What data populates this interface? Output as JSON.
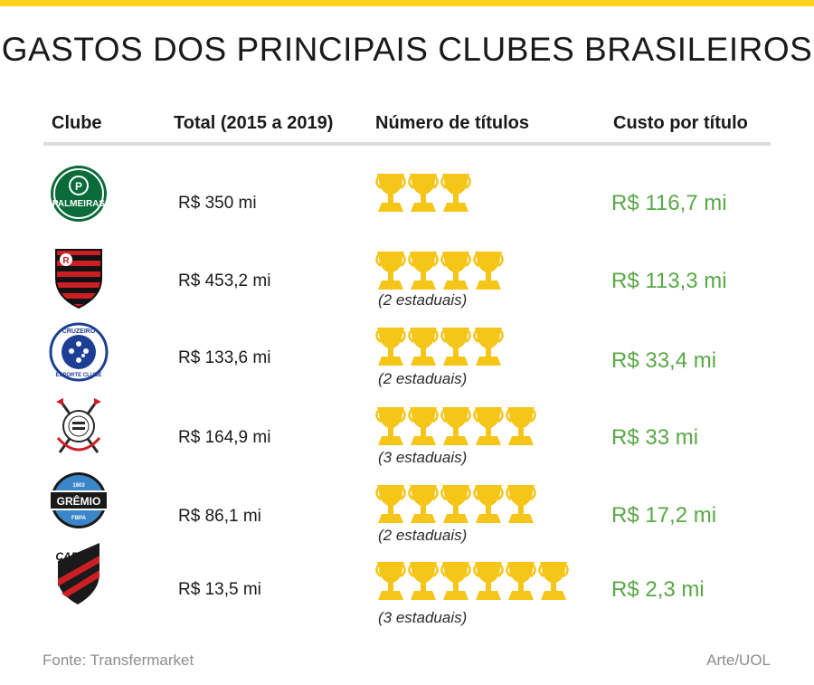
{
  "title": "GASTOS DOS PRINCIPAIS CLUBES BRASILEIROS",
  "headers": {
    "club": "Clube",
    "total": "Total (2015 a 2019)",
    "titles": "Número de títulos",
    "cost": "Custo por título"
  },
  "rows": [
    {
      "logo": "palmeiras-logo",
      "total": "R$ 350 mi",
      "trophies": 3,
      "note": "",
      "cost": "R$ 116,7 mi"
    },
    {
      "logo": "flamengo-logo",
      "total": "R$ 453,2 mi",
      "trophies": 4,
      "note": "(2 estaduais)",
      "cost": "R$ 113,3 mi"
    },
    {
      "logo": "cruzeiro-logo",
      "total": "R$ 133,6 mi",
      "trophies": 4,
      "note": "(2 estaduais)",
      "cost": "R$ 33,4 mi"
    },
    {
      "logo": "corinthians-logo",
      "total": "R$ 164,9 mi",
      "trophies": 5,
      "note": "(3 estaduais)",
      "cost": "R$ 33 mi"
    },
    {
      "logo": "gremio-logo",
      "total": "R$ 86,1 mi",
      "trophies": 5,
      "note": "(2 estaduais)",
      "cost": "R$ 17,2 mi"
    },
    {
      "logo": "athletico-pr-logo",
      "total": "R$ 13,5 mi",
      "trophies": 6,
      "note": "(3 estaduais)",
      "cost": "R$ 2,3 mi"
    }
  ],
  "logo_text": {
    "palmeiras": "PALMEIRAS",
    "cruzeiro": "CRUZEIRO",
    "cruzeiro_sub": "ESPORTE CLUBE",
    "gremio": "GRÊMIO",
    "gremio_year": "1903",
    "gremio_sub": "FBPA",
    "cap": "CAP"
  },
  "footer": {
    "source": "Fonte: Transfermarket",
    "credit": "Arte/UOL"
  },
  "colors": {
    "accent_bar": "#ffd11a",
    "trophy": "#f5c518",
    "cost_text": "#58a846"
  }
}
